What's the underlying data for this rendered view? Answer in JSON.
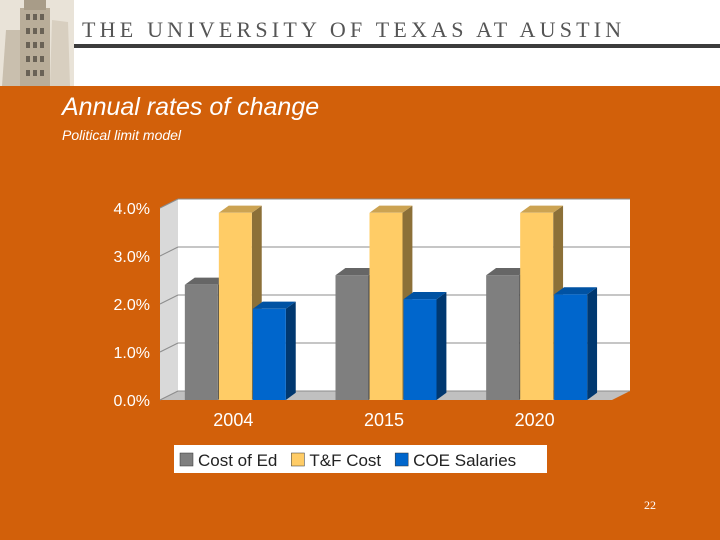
{
  "header": {
    "university": "THE UNIVERSITY OF TEXAS AT AUSTIN",
    "logo_icon": "ut-tower-icon"
  },
  "slide": {
    "title": "Annual rates of change",
    "subtitle": "Political limit model",
    "page_number": "22"
  },
  "colors": {
    "background": "#d2600a",
    "cost_of_ed": "#7f7f7f",
    "tf_cost": "#ffcc66",
    "coe_salaries": "#0066cc"
  },
  "chart_data": {
    "type": "bar",
    "categories": [
      "2004",
      "2015",
      "2020"
    ],
    "series": [
      {
        "name": "Cost of Ed",
        "values": [
          2.4,
          2.6,
          2.6
        ],
        "color": "#7f7f7f"
      },
      {
        "name": "T&F Cost",
        "values": [
          3.9,
          3.9,
          3.9
        ],
        "color": "#ffcc66"
      },
      {
        "name": "COE Salaries",
        "values": [
          1.9,
          2.1,
          2.2
        ],
        "color": "#0066cc"
      }
    ],
    "yticks": [
      "0.0%",
      "1.0%",
      "2.0%",
      "3.0%",
      "4.0%"
    ],
    "ylim": [
      0,
      4
    ],
    "grid": true,
    "legend": "bottom",
    "style": "3d"
  }
}
